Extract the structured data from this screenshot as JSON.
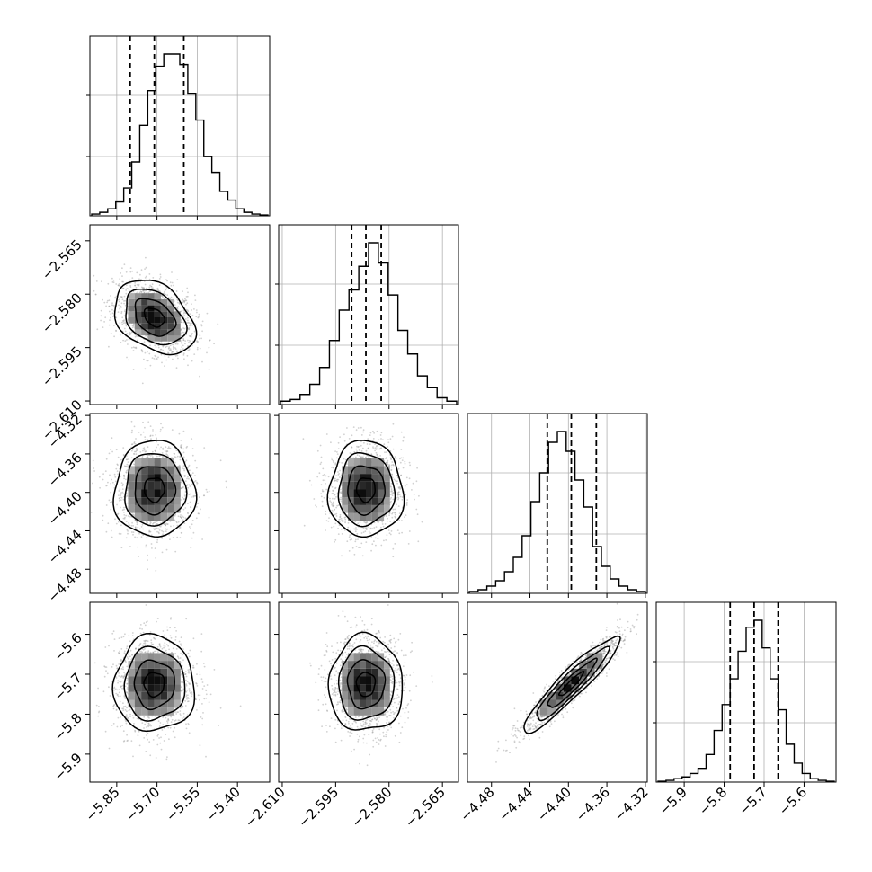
{
  "chart_data": {
    "type": "corner",
    "parameters": [
      "",
      "",
      "",
      ""
    ],
    "ranges": [
      [
        -5.95,
        -5.28
      ],
      [
        -2.611,
        -2.5605
      ],
      [
        -4.505,
        -4.318
      ],
      [
        -5.97,
        -5.52
      ]
    ],
    "ticks": [
      [
        -5.85,
        -5.7,
        -5.55,
        -5.4
      ],
      [
        -2.61,
        -2.595,
        -2.58,
        -2.565
      ],
      [
        -4.48,
        -4.44,
        -4.4,
        -4.36,
        -4.32
      ],
      [
        -5.9,
        -5.8,
        -5.7,
        -5.6
      ]
    ],
    "tick_labels": [
      [
        "−5.85",
        "−5.70",
        "−5.55",
        "−5.40"
      ],
      [
        "−2.610",
        "−2.595",
        "−2.580",
        "−2.565"
      ],
      [
        "−4.48",
        "−4.44",
        "−4.40",
        "−4.36",
        "−4.32"
      ],
      [
        "−5.9",
        "−5.8",
        "−5.7",
        "−5.6"
      ]
    ],
    "quantiles": [
      0.16,
      0.5,
      0.84
    ],
    "quantile_values": [
      [
        -5.8,
        -5.71,
        -5.6
      ],
      [
        -2.5905,
        -2.5865,
        -2.5822
      ],
      [
        -4.422,
        -4.397,
        -4.371
      ],
      [
        -5.785,
        -5.725,
        -5.665
      ]
    ],
    "histograms": [
      [
        1,
        2,
        4,
        8,
        16,
        31,
        52,
        72,
        86,
        93,
        93,
        87,
        70,
        55,
        34,
        25,
        14,
        9,
        4,
        2,
        1,
        0.5
      ],
      [
        2,
        3,
        6,
        12,
        22,
        38,
        56,
        68,
        82,
        96,
        84,
        65,
        44,
        30,
        17,
        10,
        4,
        2
      ],
      [
        1,
        2,
        4,
        7,
        12,
        20,
        32,
        51,
        67,
        84,
        90,
        79,
        63,
        48,
        26,
        15,
        8,
        4,
        2,
        1
      ],
      [
        0.5,
        1,
        2,
        3,
        5,
        8,
        16,
        30,
        45,
        60,
        76,
        90,
        94,
        78,
        60,
        42,
        22,
        11,
        5,
        2,
        1,
        0.5
      ]
    ],
    "pairs": [
      {
        "x": 0,
        "y": 1,
        "mean": [
          -5.71,
          -2.5865
        ],
        "sd": [
          0.075,
          0.0052
        ],
        "rho": -0.35
      },
      {
        "x": 0,
        "y": 2,
        "mean": [
          -5.71,
          -4.397
        ],
        "sd": [
          0.075,
          0.025
        ],
        "rho": 0.0
      },
      {
        "x": 1,
        "y": 2,
        "mean": [
          -2.5865,
          -4.397
        ],
        "sd": [
          0.0052,
          0.025
        ],
        "rho": 0.0
      },
      {
        "x": 0,
        "y": 3,
        "mean": [
          -5.71,
          -5.725
        ],
        "sd": [
          0.075,
          0.06
        ],
        "rho": 0.0
      },
      {
        "x": 1,
        "y": 3,
        "mean": [
          -2.5865,
          -5.725
        ],
        "sd": [
          0.0052,
          0.06
        ],
        "rho": 0.0
      },
      {
        "x": 2,
        "y": 3,
        "mean": [
          -4.397,
          -5.725
        ],
        "sd": [
          0.025,
          0.06
        ],
        "rho": 0.93
      }
    ],
    "contour_levels_sigma": [
      0.5,
      1.0,
      1.5,
      2.0
    ],
    "grid": true,
    "colors": {
      "hist": "#000000",
      "points": "#9a9a9a",
      "density_dark": "#000000",
      "grid": "#b0b0b0"
    }
  }
}
